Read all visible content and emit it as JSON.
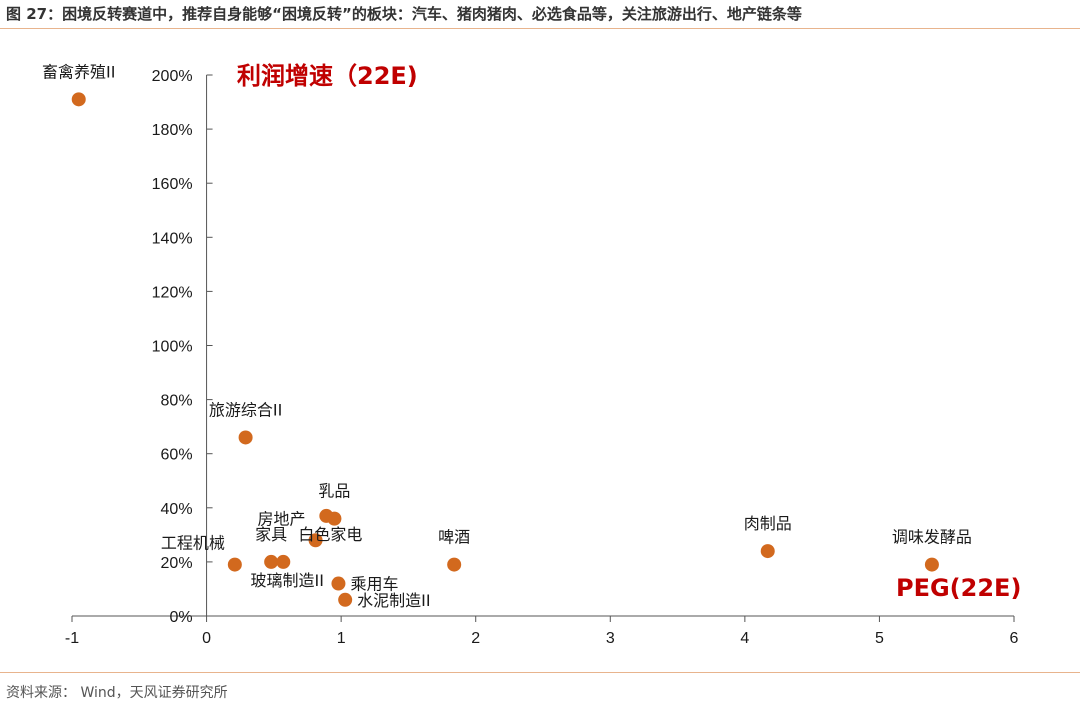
{
  "title": "图 27：困境反转赛道中，推荐自身能够“困境反转”的板块：汽车、猪肉猪肉、必选食品等，关注旅游出行、地产链条等",
  "source": "资料来源：  Wind，天风证券研究所",
  "colors": {
    "point": "#d2691e",
    "annotation": "#c00000",
    "axis": "#555555",
    "rule": "#e8b48d"
  },
  "chart_data": {
    "type": "scatter",
    "title": "",
    "xlabel": "PEG(22E)",
    "ylabel": "利润增速（22E)",
    "xlim": [
      -1,
      6
    ],
    "ylim": [
      0,
      200
    ],
    "x_ticks": [
      {
        "value": -1,
        "label": "-1"
      },
      {
        "value": 0,
        "label": "0"
      },
      {
        "value": 1,
        "label": "1"
      },
      {
        "value": 2,
        "label": "2"
      },
      {
        "value": 3,
        "label": "3"
      },
      {
        "value": 4,
        "label": "4"
      },
      {
        "value": 5,
        "label": "5"
      },
      {
        "value": 6,
        "label": "6"
      }
    ],
    "y_ticks": [
      {
        "value": 0,
        "label": "0%"
      },
      {
        "value": 20,
        "label": "20%"
      },
      {
        "value": 40,
        "label": "40%"
      },
      {
        "value": 60,
        "label": "60%"
      },
      {
        "value": 80,
        "label": "80%"
      },
      {
        "value": 100,
        "label": "100%"
      },
      {
        "value": 120,
        "label": "120%"
      },
      {
        "value": 140,
        "label": "140%"
      },
      {
        "value": 160,
        "label": "160%"
      },
      {
        "value": 180,
        "label": "180%"
      },
      {
        "value": 200,
        "label": "200%"
      }
    ],
    "grid": false,
    "points": [
      {
        "label": "畜禽养殖II",
        "x": -0.95,
        "y": 191,
        "label_pos": "above"
      },
      {
        "label": "旅游综合II",
        "x": 0.29,
        "y": 66,
        "label_pos": "above"
      },
      {
        "label": "工程机械",
        "x": 0.21,
        "y": 19,
        "label_pos": "above-left"
      },
      {
        "label": "家具",
        "x": 0.48,
        "y": 20,
        "label_pos": "above"
      },
      {
        "label": "玻璃制造II",
        "x": 0.57,
        "y": 20,
        "label_pos": "below"
      },
      {
        "label": "房地产",
        "x": 0.81,
        "y": 28,
        "label_pos": "above-left"
      },
      {
        "label": "白色家电",
        "x": 0.89,
        "y": 37,
        "label_pos": "below"
      },
      {
        "label": "乳品",
        "x": 0.95,
        "y": 36,
        "label_pos": "above"
      },
      {
        "label": "乘用车",
        "x": 0.98,
        "y": 12,
        "label_pos": "right"
      },
      {
        "label": "水泥制造II",
        "x": 1.03,
        "y": 6,
        "label_pos": "right"
      },
      {
        "label": "啤酒",
        "x": 1.84,
        "y": 19,
        "label_pos": "above"
      },
      {
        "label": "肉制品",
        "x": 4.17,
        "y": 24,
        "label_pos": "above"
      },
      {
        "label": "调味发酵品",
        "x": 5.39,
        "y": 19,
        "label_pos": "above"
      }
    ]
  }
}
